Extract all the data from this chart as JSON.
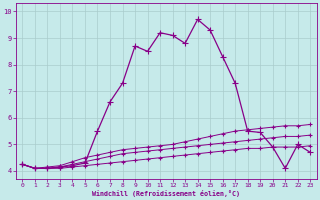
{
  "xlabel": "Windchill (Refroidissement éolien,°C)",
  "xlim": [
    -0.5,
    23.5
  ],
  "ylim": [
    3.7,
    10.3
  ],
  "yticks": [
    4,
    5,
    6,
    7,
    8,
    9,
    10
  ],
  "xticks": [
    0,
    1,
    2,
    3,
    4,
    5,
    6,
    7,
    8,
    9,
    10,
    11,
    12,
    13,
    14,
    15,
    16,
    17,
    18,
    19,
    20,
    21,
    22,
    23
  ],
  "bg_color": "#c6eaea",
  "grid_color": "#aacccc",
  "line_color": "#880088",
  "lines": [
    {
      "x": [
        0,
        1,
        2,
        3,
        4,
        5,
        6,
        7,
        8,
        9,
        10,
        11,
        12,
        13,
        14,
        15,
        16,
        17,
        18,
        19,
        20,
        21,
        22,
        23
      ],
      "y": [
        4.25,
        4.1,
        4.1,
        4.15,
        4.2,
        4.3,
        5.5,
        6.6,
        7.3,
        8.7,
        8.5,
        9.2,
        9.1,
        8.8,
        9.7,
        9.3,
        8.3,
        7.3,
        5.5,
        5.45,
        4.9,
        4.1,
        5.0,
        4.7
      ],
      "marker": "+",
      "markersize": 4,
      "linewidth": 0.9,
      "linestyle": "-"
    },
    {
      "x": [
        0,
        1,
        2,
        3,
        4,
        5,
        6,
        7,
        8,
        9,
        10,
        11,
        12,
        13,
        14,
        15,
        16,
        17,
        18,
        19,
        20,
        21,
        22,
        23
      ],
      "y": [
        4.25,
        4.1,
        4.15,
        4.2,
        4.35,
        4.5,
        4.6,
        4.7,
        4.8,
        4.85,
        4.9,
        4.95,
        5.0,
        5.1,
        5.2,
        5.3,
        5.4,
        5.5,
        5.55,
        5.6,
        5.65,
        5.7,
        5.7,
        5.75
      ],
      "marker": "+",
      "markersize": 3,
      "linewidth": 0.7,
      "linestyle": "-"
    },
    {
      "x": [
        0,
        1,
        2,
        3,
        4,
        5,
        6,
        7,
        8,
        9,
        10,
        11,
        12,
        13,
        14,
        15,
        16,
        17,
        18,
        19,
        20,
        21,
        22,
        23
      ],
      "y": [
        4.25,
        4.1,
        4.1,
        4.15,
        4.25,
        4.35,
        4.45,
        4.55,
        4.65,
        4.7,
        4.75,
        4.8,
        4.85,
        4.9,
        4.95,
        5.0,
        5.05,
        5.1,
        5.15,
        5.2,
        5.25,
        5.3,
        5.3,
        5.35
      ],
      "marker": "+",
      "markersize": 3,
      "linewidth": 0.7,
      "linestyle": "-"
    },
    {
      "x": [
        0,
        1,
        2,
        3,
        4,
        5,
        6,
        7,
        8,
        9,
        10,
        11,
        12,
        13,
        14,
        15,
        16,
        17,
        18,
        19,
        20,
        21,
        22,
        23
      ],
      "y": [
        4.25,
        4.1,
        4.1,
        4.1,
        4.15,
        4.2,
        4.25,
        4.3,
        4.35,
        4.4,
        4.45,
        4.5,
        4.55,
        4.6,
        4.65,
        4.7,
        4.75,
        4.8,
        4.85,
        4.85,
        4.9,
        4.9,
        4.9,
        4.95
      ],
      "marker": "+",
      "markersize": 3,
      "linewidth": 0.7,
      "linestyle": "-"
    }
  ]
}
